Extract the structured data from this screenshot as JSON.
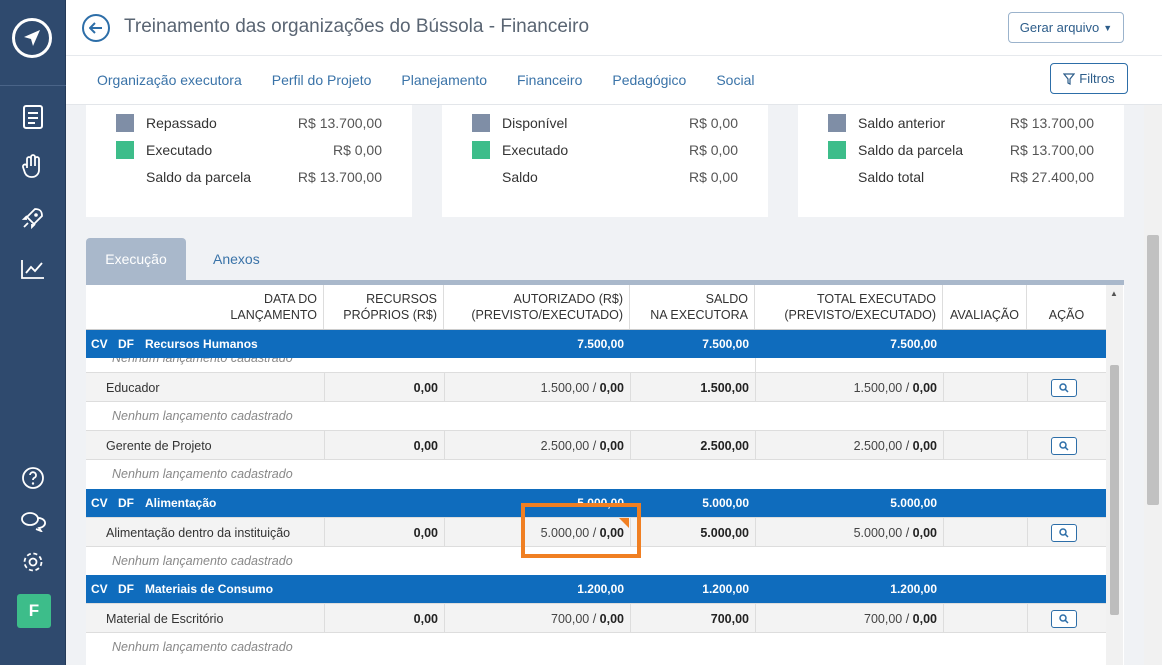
{
  "header": {
    "title": "Treinamento das organizações do Bússola - Financeiro",
    "gerar_arquivo": "Gerar arquivo",
    "filtros": "Filtros",
    "nav": [
      "Organização executora",
      "Perfil do Projeto",
      "Planejamento",
      "Financeiro",
      "Pedagógico",
      "Social"
    ]
  },
  "sidebar": {
    "avatar_letter": "F",
    "icons": [
      "document-icon",
      "hand-heart-icon",
      "rocket-icon",
      "chart-icon",
      "help-icon",
      "chat-icon",
      "settings-icon"
    ]
  },
  "cards": [
    {
      "rows": [
        {
          "label": "Repassado",
          "value": "R$ 13.700,00",
          "color": "#7f8ea6"
        },
        {
          "label": "Executado",
          "value": "R$ 0,00",
          "color": "#3dbd8a"
        },
        {
          "label": "Saldo da parcela",
          "value": "R$ 13.700,00",
          "color": ""
        }
      ]
    },
    {
      "rows": [
        {
          "label": "Disponível",
          "value": "R$ 0,00",
          "color": "#7f8ea6"
        },
        {
          "label": "Executado",
          "value": "R$ 0,00",
          "color": "#3dbd8a"
        },
        {
          "label": "Saldo",
          "value": "R$ 0,00",
          "color": ""
        }
      ]
    },
    {
      "rows": [
        {
          "label": "Saldo anterior",
          "value": "R$ 13.700,00",
          "color": "#7f8ea6"
        },
        {
          "label": "Saldo da parcela",
          "value": "R$ 13.700,00",
          "color": "#3dbd8a"
        },
        {
          "label": "Saldo total",
          "value": "R$ 27.400,00",
          "color": ""
        }
      ]
    }
  ],
  "tabs": {
    "execucao": "Execução",
    "anexos": "Anexos"
  },
  "table": {
    "headers": {
      "data_l1": "DATA DO",
      "data_l2": "LANÇAMENTO",
      "recursos_l1": "RECURSOS",
      "recursos_l2": "PRÓPRIOS (R$)",
      "autorizado_l1": "AUTORIZADO (R$)",
      "autorizado_l2": "(PREVISTO/EXECUTADO)",
      "saldo_l1": "SALDO",
      "saldo_l2": "NA EXECUTORA",
      "total_l1": "TOTAL EXECUTADO",
      "total_l2": "(PREVISTO/EXECUTADO)",
      "avaliacao": "AVALIAÇÃO",
      "acao": "AÇÃO"
    },
    "cv": "CV",
    "df": "DF",
    "empty_text": "Nenhum lançamento cadastrado",
    "categories": [
      {
        "name": "Recursos Humanos",
        "autorizado": "7.500,00",
        "saldo": "7.500,00",
        "total": "7.500,00"
      },
      {
        "name": "Alimentação",
        "autorizado": "5.000,00",
        "saldo": "5.000,00",
        "total": "5.000,00"
      },
      {
        "name": "Materiais de Consumo",
        "autorizado": "1.200,00",
        "saldo": "1.200,00",
        "total": "1.200,00"
      }
    ],
    "items": [
      {
        "name": "Educador",
        "recursos": "0,00",
        "aut_prev": "1.500,00 / ",
        "aut_exec": "0,00",
        "saldo": "1.500,00",
        "tot_prev": "1.500,00 / ",
        "tot_exec": "0,00"
      },
      {
        "name": "Gerente de Projeto",
        "recursos": "0,00",
        "aut_prev": "2.500,00 / ",
        "aut_exec": "0,00",
        "saldo": "2.500,00",
        "tot_prev": "2.500,00 / ",
        "tot_exec": "0,00"
      },
      {
        "name": "Alimentação dentro da instituição",
        "recursos": "0,00",
        "aut_prev": "5.000,00 / ",
        "aut_exec": "0,00",
        "saldo": "5.000,00",
        "tot_prev": "5.000,00 / ",
        "tot_exec": "0,00"
      },
      {
        "name": "Material de Escritório",
        "recursos": "0,00",
        "aut_prev": "700,00 / ",
        "aut_exec": "0,00",
        "saldo": "700,00",
        "tot_prev": "700,00 / ",
        "tot_exec": "0,00"
      }
    ]
  },
  "colors": {
    "sidebar": "#2f4a6e",
    "category_row": "#0f6cbd",
    "highlight": "#f07f22",
    "accent": "#2d6ea8"
  }
}
